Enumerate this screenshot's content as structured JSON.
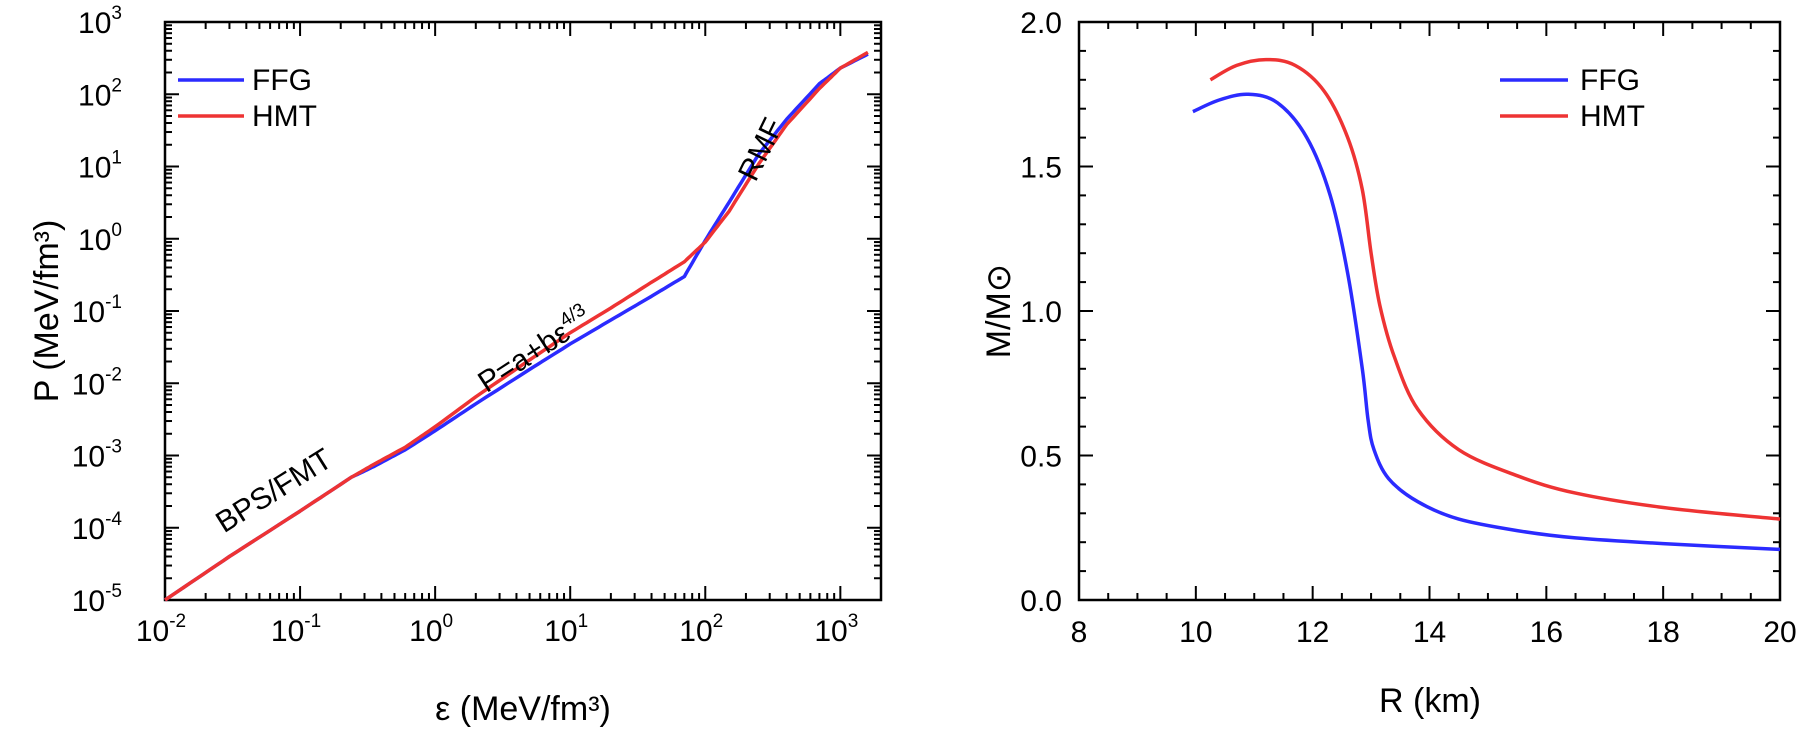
{
  "colors": {
    "FFG": "#2b2bff",
    "HMT": "#ee3333"
  },
  "chart_data": [
    {
      "type": "line",
      "xlabel": "ε (MeV/fm³)",
      "ylabel": "P (MeV/fm³)",
      "x_scale": "log",
      "y_scale": "log",
      "xlim": [
        0.01,
        2000
      ],
      "ylim": [
        1e-05,
        1000
      ],
      "grid": false,
      "legend": "top-left",
      "x_ticks": [
        {
          "value": 0.01,
          "base": "10",
          "exp": "-2"
        },
        {
          "value": 0.1,
          "base": "10",
          "exp": "-1"
        },
        {
          "value": 1,
          "base": "10",
          "exp": "0"
        },
        {
          "value": 10,
          "base": "10",
          "exp": "1"
        },
        {
          "value": 100,
          "base": "10",
          "exp": "2"
        },
        {
          "value": 1000,
          "base": "10",
          "exp": "3"
        }
      ],
      "y_ticks": [
        {
          "value": 1e-05,
          "base": "10",
          "exp": "-5"
        },
        {
          "value": 0.0001,
          "base": "10",
          "exp": "-4"
        },
        {
          "value": 0.001,
          "base": "10",
          "exp": "-3"
        },
        {
          "value": 0.01,
          "base": "10",
          "exp": "-2"
        },
        {
          "value": 0.1,
          "base": "10",
          "exp": "-1"
        },
        {
          "value": 1,
          "base": "10",
          "exp": "0"
        },
        {
          "value": 10,
          "base": "10",
          "exp": "1"
        },
        {
          "value": 100,
          "base": "10",
          "exp": "2"
        },
        {
          "value": 1000,
          "base": "10",
          "exp": "3"
        }
      ],
      "annotations": [
        {
          "text": "BPS/FMT",
          "x": 0.07,
          "y": 0.00025
        },
        {
          "text": "P=a+bε",
          "sup": "4/3",
          "x": 6,
          "y": 0.022
        },
        {
          "text": "RMF",
          "x": 300,
          "y": 15
        }
      ],
      "series": [
        {
          "name": "FFG",
          "x": [
            0.01,
            0.03,
            0.1,
            0.24,
            0.35,
            0.6,
            1,
            2,
            5,
            10,
            20,
            40,
            70,
            100,
            150,
            250,
            400,
            700,
            1000,
            1600
          ],
          "y": [
            1e-05,
            4e-05,
            0.00017,
            0.0005,
            0.0007,
            0.0012,
            0.0022,
            0.0052,
            0.0155,
            0.035,
            0.075,
            0.16,
            0.3,
            0.95,
            3.2,
            15,
            45,
            140,
            230,
            360
          ]
        },
        {
          "name": "HMT",
          "x": [
            0.01,
            0.03,
            0.1,
            0.24,
            0.35,
            0.6,
            1,
            2,
            5,
            10,
            20,
            40,
            70,
            100,
            150,
            250,
            400,
            700,
            1000,
            1600
          ],
          "y": [
            1e-05,
            4e-05,
            0.00017,
            0.0005,
            0.00075,
            0.0013,
            0.0025,
            0.0065,
            0.021,
            0.05,
            0.11,
            0.25,
            0.48,
            0.9,
            2.4,
            11,
            38,
            120,
            230,
            380
          ]
        }
      ]
    },
    {
      "type": "line",
      "xlabel": "R (km)",
      "ylabel": "M/M⊙",
      "xlim": [
        8,
        20
      ],
      "ylim": [
        0,
        2.0
      ],
      "grid": false,
      "legend": "top-right",
      "x_ticks": [
        "8",
        "10",
        "12",
        "14",
        "16",
        "18",
        "20"
      ],
      "y_ticks": [
        "0.0",
        "0.5",
        "1.0",
        "1.5",
        "2.0"
      ],
      "series": [
        {
          "name": "FFG",
          "x": [
            9.95,
            10.4,
            10.9,
            11.4,
            11.9,
            12.3,
            12.6,
            12.85,
            12.95,
            13.05,
            13.3,
            13.8,
            14.5,
            15.5,
            16.5,
            18,
            20
          ],
          "y": [
            1.69,
            1.73,
            1.75,
            1.72,
            1.6,
            1.4,
            1.13,
            0.8,
            0.62,
            0.52,
            0.42,
            0.34,
            0.28,
            0.24,
            0.215,
            0.195,
            0.175
          ]
        },
        {
          "name": "HMT",
          "x": [
            10.25,
            10.7,
            11.2,
            11.7,
            12.2,
            12.6,
            12.85,
            13.0,
            13.15,
            13.4,
            13.8,
            14.5,
            15.5,
            16.5,
            18,
            20
          ],
          "y": [
            1.8,
            1.85,
            1.87,
            1.85,
            1.76,
            1.6,
            1.42,
            1.2,
            1.02,
            0.84,
            0.66,
            0.52,
            0.43,
            0.37,
            0.32,
            0.28
          ]
        }
      ]
    }
  ]
}
